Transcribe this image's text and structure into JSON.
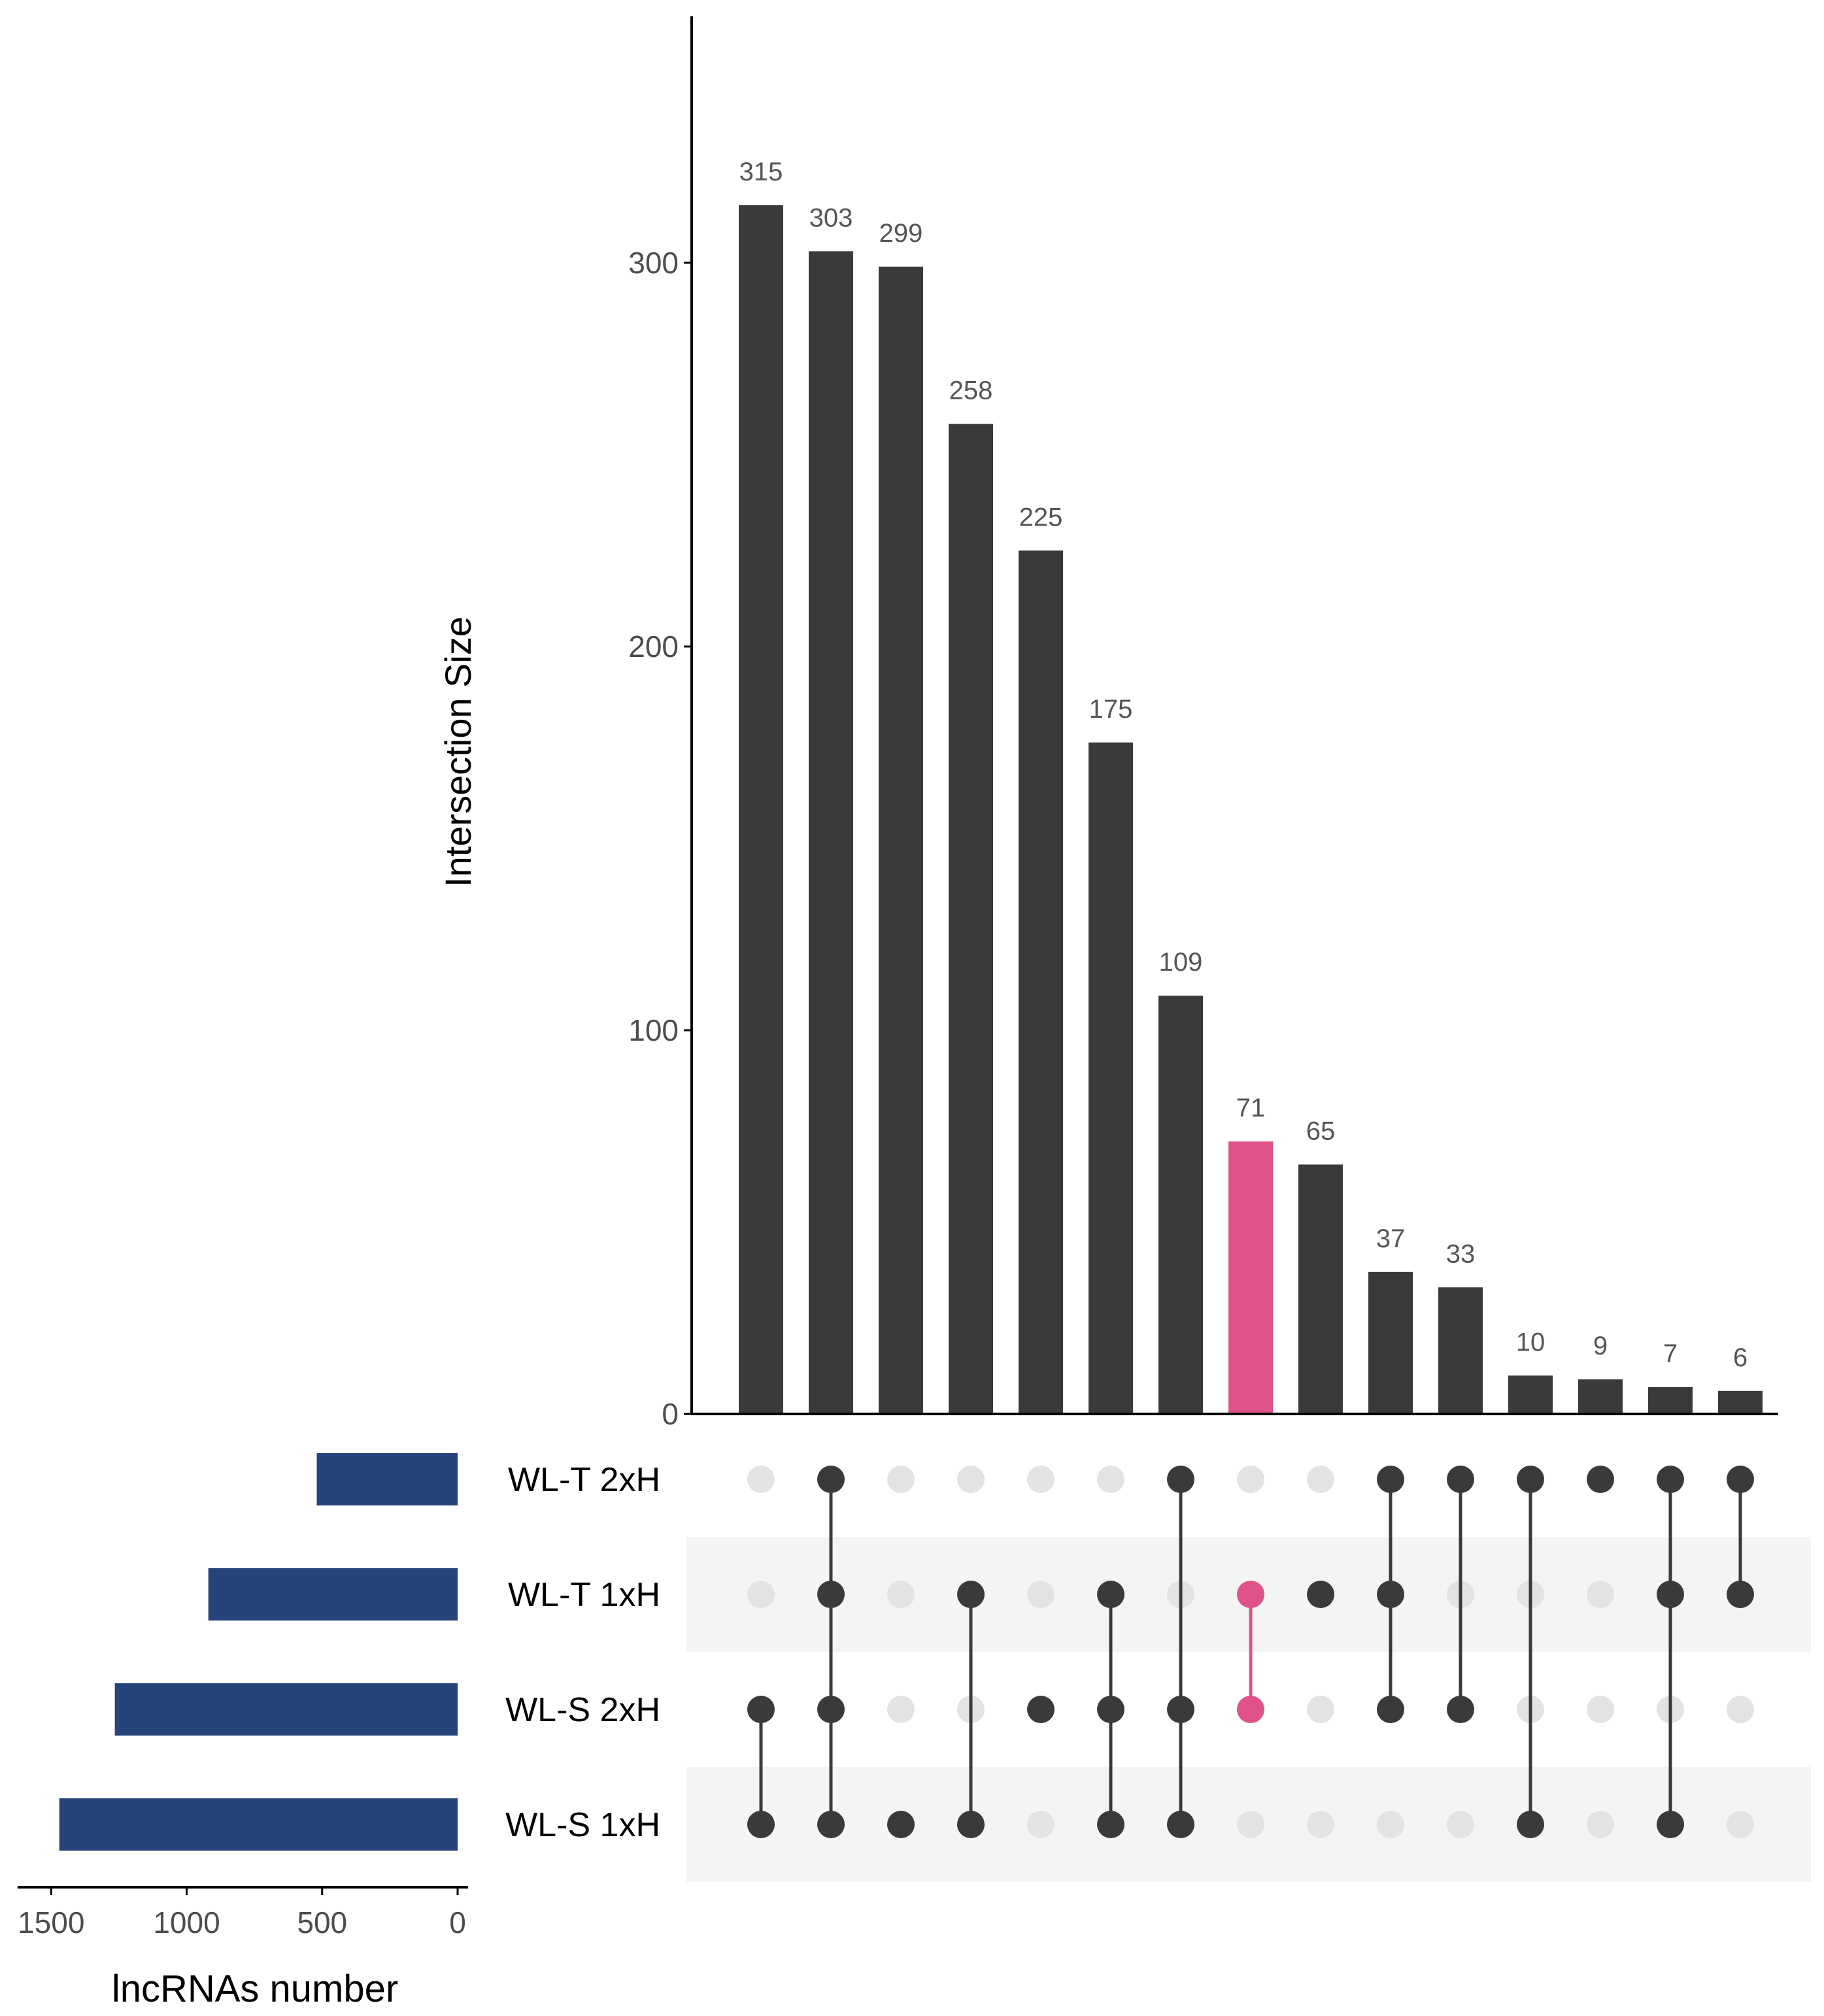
{
  "chart_data": {
    "type": "upset",
    "intersection_axis": {
      "label": "Intersection Size",
      "ylim": [
        0,
        360
      ],
      "ticks": [
        0,
        100,
        200,
        300
      ]
    },
    "set_size_axis": {
      "label": "lncRNAs number",
      "xlim": [
        0,
        1550
      ],
      "ticks": [
        1500,
        1000,
        500,
        0
      ]
    },
    "sets": [
      {
        "name": "WL-T 2xH",
        "size": 520
      },
      {
        "name": "WL-T 1xH",
        "size": 920
      },
      {
        "name": "WL-S 2xH",
        "size": 1265
      },
      {
        "name": "WL-S 1xH",
        "size": 1470
      }
    ],
    "intersections": [
      {
        "value": 315,
        "sets": [
          "WL-S 2xH",
          "WL-S 1xH"
        ],
        "highlight": false
      },
      {
        "value": 303,
        "sets": [
          "WL-T 2xH",
          "WL-T 1xH",
          "WL-S 2xH",
          "WL-S 1xH"
        ],
        "highlight": false
      },
      {
        "value": 299,
        "sets": [
          "WL-S 1xH"
        ],
        "highlight": false
      },
      {
        "value": 258,
        "sets": [
          "WL-T 1xH",
          "WL-S 1xH"
        ],
        "highlight": false
      },
      {
        "value": 225,
        "sets": [
          "WL-S 2xH"
        ],
        "highlight": false
      },
      {
        "value": 175,
        "sets": [
          "WL-T 1xH",
          "WL-S 2xH",
          "WL-S 1xH"
        ],
        "highlight": false
      },
      {
        "value": 109,
        "sets": [
          "WL-T 2xH",
          "WL-S 2xH",
          "WL-S 1xH"
        ],
        "highlight": false
      },
      {
        "value": 71,
        "sets": [
          "WL-T 1xH",
          "WL-S 2xH"
        ],
        "highlight": true
      },
      {
        "value": 65,
        "sets": [
          "WL-T 1xH"
        ],
        "highlight": false
      },
      {
        "value": 37,
        "sets": [
          "WL-T 2xH",
          "WL-T 1xH",
          "WL-S 2xH"
        ],
        "highlight": false
      },
      {
        "value": 33,
        "sets": [
          "WL-T 2xH",
          "WL-S 2xH"
        ],
        "highlight": false
      },
      {
        "value": 10,
        "sets": [
          "WL-T 2xH",
          "WL-S 1xH"
        ],
        "highlight": false
      },
      {
        "value": 9,
        "sets": [
          "WL-T 2xH"
        ],
        "highlight": false
      },
      {
        "value": 7,
        "sets": [
          "WL-T 2xH",
          "WL-T 1xH",
          "WL-S 1xH"
        ],
        "highlight": false
      },
      {
        "value": 6,
        "sets": [
          "WL-T 2xH",
          "WL-T 1xH"
        ],
        "highlight": false
      }
    ],
    "colors": {
      "bar": "#3a3a3a",
      "highlight": "#e0538a",
      "set_bar": "#26447a",
      "dot_inactive": "#e3e3e3",
      "row_shade": "#f4f4f4",
      "axis": "#000000",
      "tick_label": "#4d4d4d",
      "value_label": "#555555"
    },
    "grid": false
  }
}
